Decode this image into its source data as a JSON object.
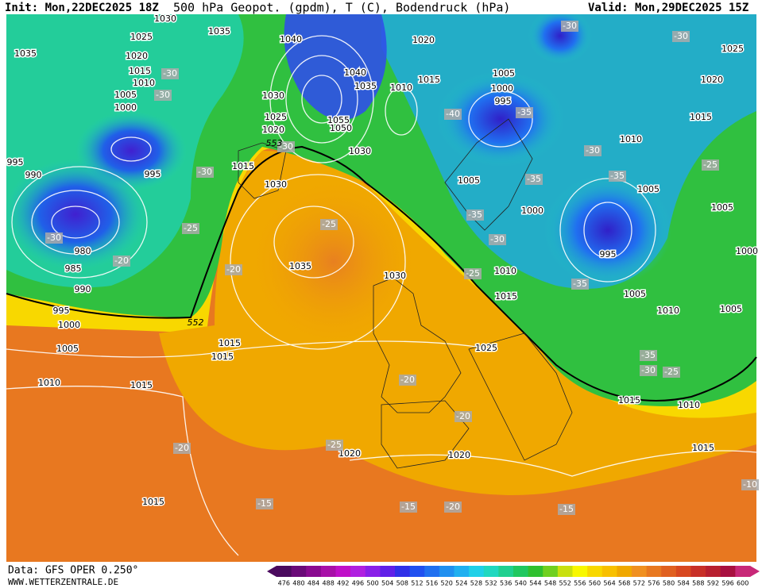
{
  "header": {
    "init": "Init: Mon,22DEC2025 18Z",
    "title": "500 hPa Geopot. (gpdm), T (C), Bodendruck (hPa)",
    "valid": "Valid: Mon,29DEC2025 15Z"
  },
  "footer": {
    "source": "Data: GFS OPER 0.250°",
    "site": "WWW.WETTERZENTRALE.DE"
  },
  "map": {
    "pressure_labels": [
      1030,
      1035,
      1025,
      1035,
      1020,
      1040,
      1020,
      1015,
      1015,
      1010,
      1005,
      1000,
      1040,
      1035,
      1010,
      1030,
      1005,
      1000,
      995,
      1025,
      1020,
      1015,
      1025,
      1055,
      1050,
      1020,
      1030,
      1010,
      995,
      995,
      990,
      1015,
      1030,
      1005,
      1005,
      1005,
      1000,
      980,
      995,
      1035,
      1000,
      985,
      1030,
      1010,
      990,
      1015,
      1005,
      995,
      1010,
      1005,
      1000,
      1015,
      1025,
      1005,
      1015,
      1010,
      1015,
      1015,
      1010,
      1020,
      1020,
      1015,
      1015
    ],
    "temperature_labels": [
      -30,
      -30,
      -35,
      -40,
      -30,
      -30,
      -35,
      -25,
      -35,
      -25,
      -30,
      -20,
      -35,
      -30,
      -25,
      -20,
      -25,
      -35,
      -30,
      -30,
      -35,
      -25,
      -20,
      -20,
      -25,
      -20,
      -15,
      -15,
      -20,
      -15,
      -10,
      -30,
      -30
    ],
    "geopotential_labels": [
      553,
      552
    ]
  },
  "colorbar": {
    "values": [
      476,
      480,
      484,
      488,
      492,
      496,
      500,
      504,
      508,
      512,
      516,
      520,
      524,
      528,
      532,
      536,
      540,
      544,
      548,
      552,
      556,
      560,
      564,
      568,
      572,
      576,
      580,
      584,
      588,
      592,
      596,
      600
    ],
    "colors": [
      "#4a0a5e",
      "#6a0a78",
      "#8a0a90",
      "#a810a8",
      "#c010c8",
      "#b020e0",
      "#8a20e8",
      "#6020e8",
      "#3030e8",
      "#2050f0",
      "#2070f0",
      "#2090f0",
      "#20b0f0",
      "#20d0e8",
      "#20d8c0",
      "#20d090",
      "#20c860",
      "#30c030",
      "#70d020",
      "#c8e010",
      "#f8f800",
      "#f8d800",
      "#f8c000",
      "#f0a800",
      "#f09020",
      "#e87820",
      "#e06020",
      "#d84820",
      "#c83028",
      "#b82030",
      "#a81040",
      "#c82878"
    ]
  }
}
